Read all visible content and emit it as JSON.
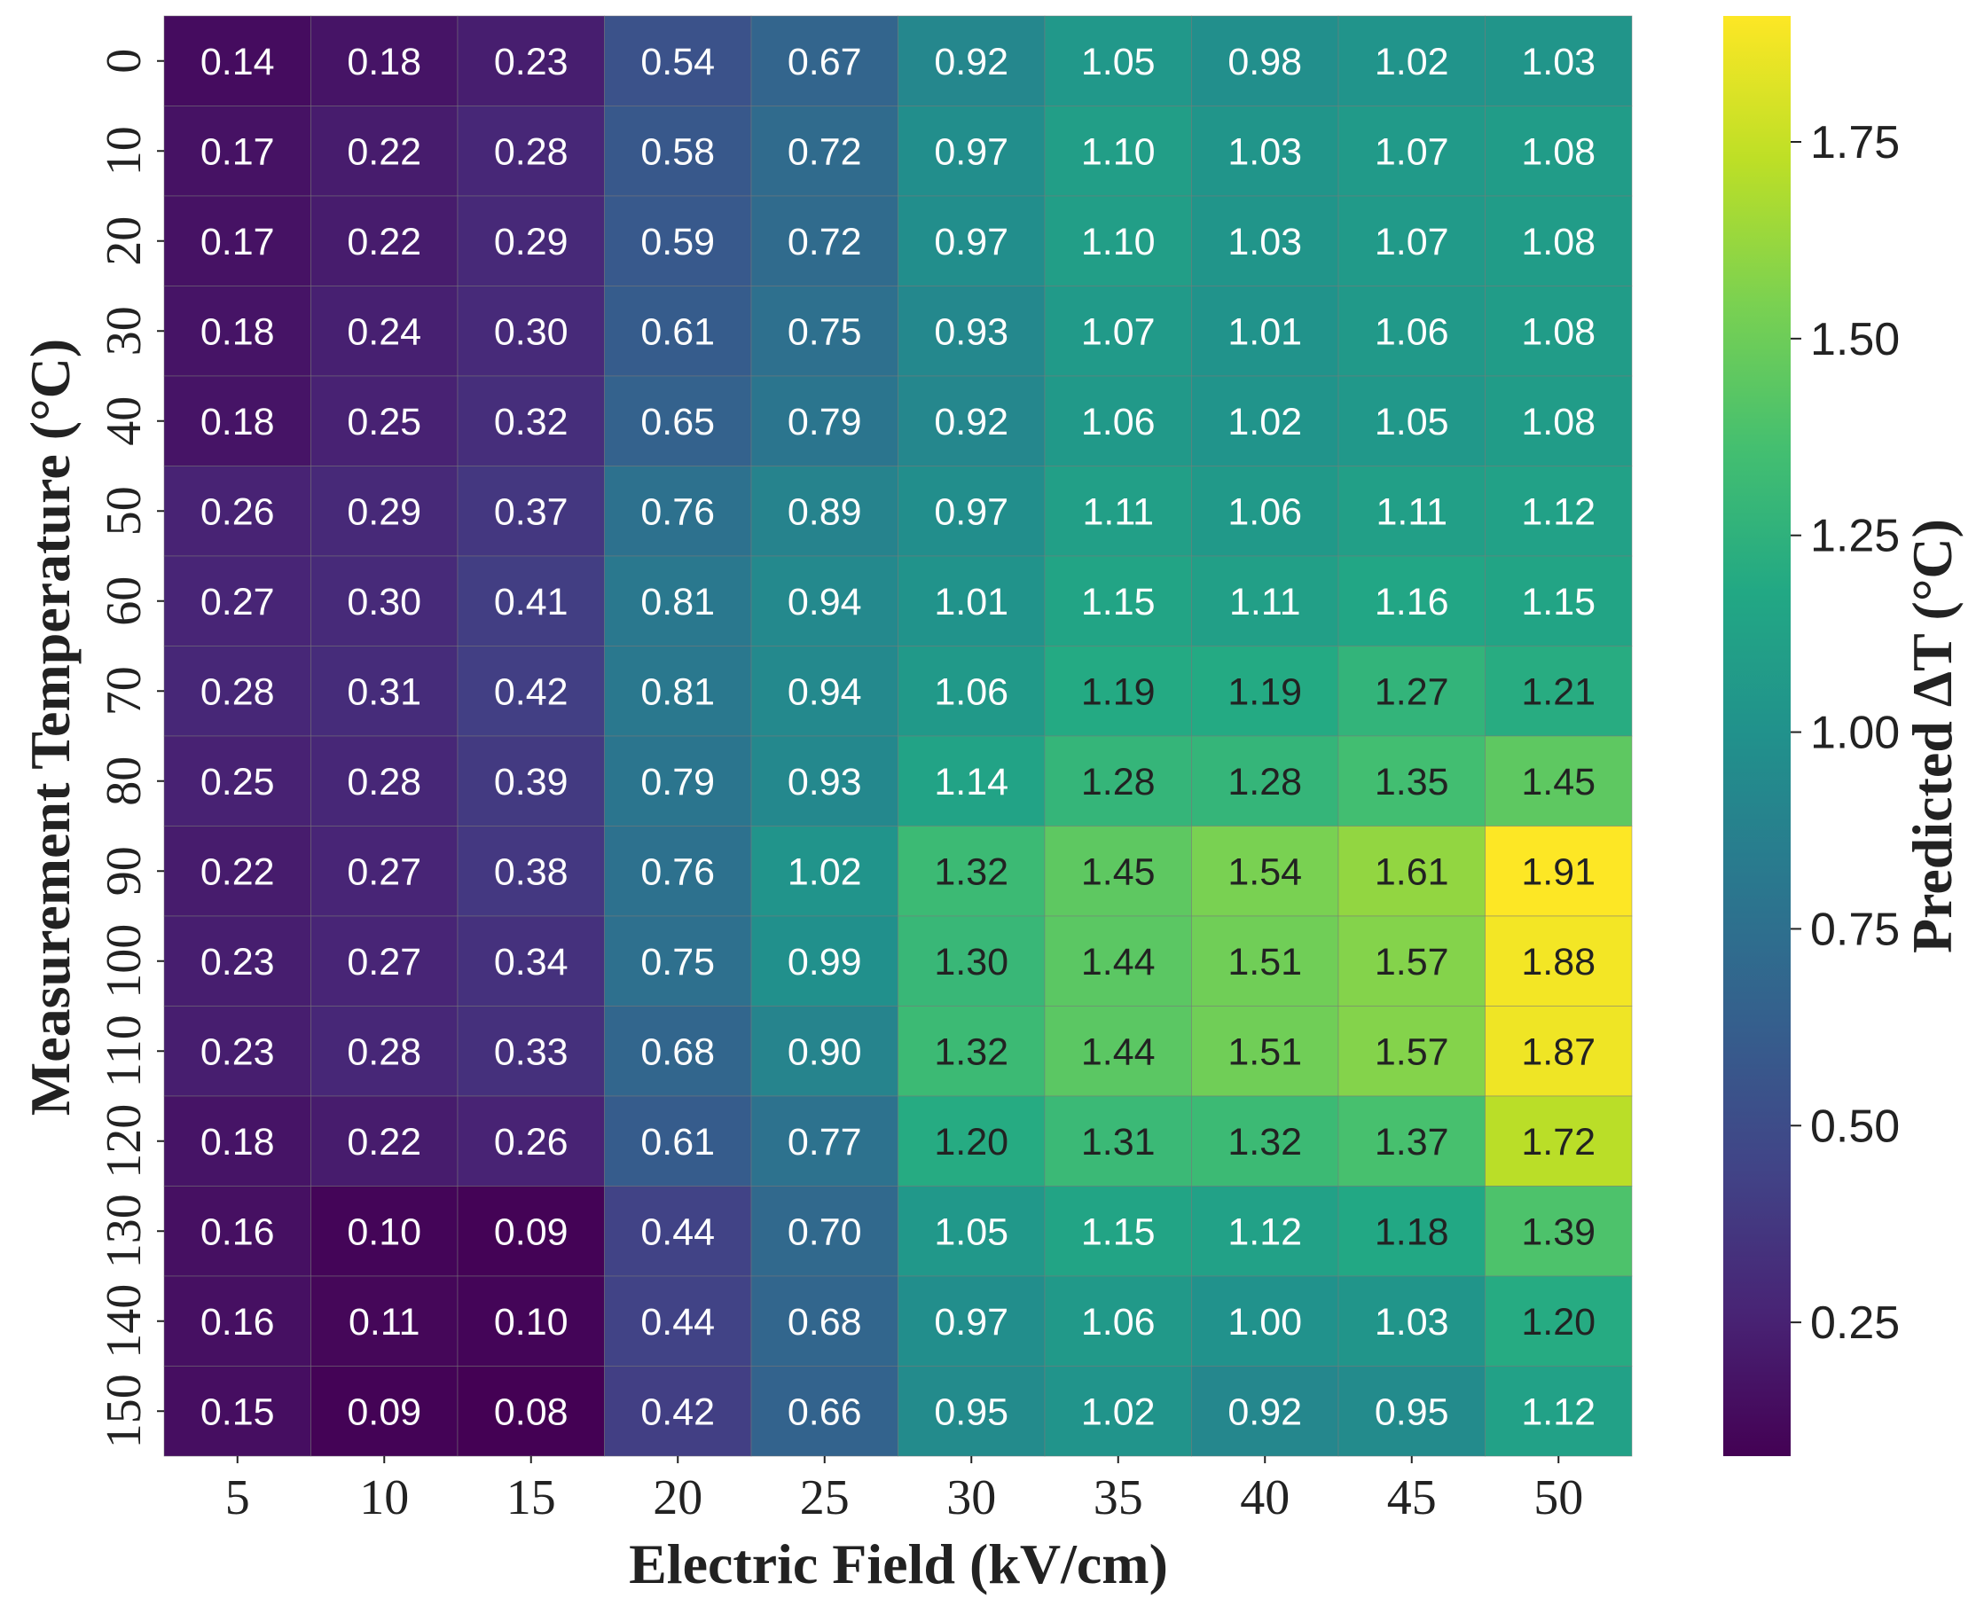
{
  "chart_data": {
    "type": "heatmap",
    "title": "",
    "xlabel": "Electric Field (kV/cm)",
    "ylabel": "Measurement Temperature (°C)",
    "colorbar_label": "Predicted ΔT (°C)",
    "x_categories": [
      "5",
      "10",
      "15",
      "20",
      "25",
      "30",
      "35",
      "40",
      "45",
      "50"
    ],
    "y_categories": [
      "0",
      "10",
      "20",
      "30",
      "40",
      "50",
      "60",
      "70",
      "80",
      "90",
      "100",
      "110",
      "120",
      "130",
      "140",
      "150"
    ],
    "values": [
      [
        0.14,
        0.18,
        0.23,
        0.54,
        0.67,
        0.92,
        1.05,
        0.98,
        1.02,
        1.03
      ],
      [
        0.17,
        0.22,
        0.28,
        0.58,
        0.72,
        0.97,
        1.1,
        1.03,
        1.07,
        1.08
      ],
      [
        0.17,
        0.22,
        0.29,
        0.59,
        0.72,
        0.97,
        1.1,
        1.03,
        1.07,
        1.08
      ],
      [
        0.18,
        0.24,
        0.3,
        0.61,
        0.75,
        0.93,
        1.07,
        1.01,
        1.06,
        1.08
      ],
      [
        0.18,
        0.25,
        0.32,
        0.65,
        0.79,
        0.92,
        1.06,
        1.02,
        1.05,
        1.08
      ],
      [
        0.26,
        0.29,
        0.37,
        0.76,
        0.89,
        0.97,
        1.11,
        1.06,
        1.11,
        1.12
      ],
      [
        0.27,
        0.3,
        0.41,
        0.81,
        0.94,
        1.01,
        1.15,
        1.11,
        1.16,
        1.15
      ],
      [
        0.28,
        0.31,
        0.42,
        0.81,
        0.94,
        1.06,
        1.19,
        1.19,
        1.27,
        1.21
      ],
      [
        0.25,
        0.28,
        0.39,
        0.79,
        0.93,
        1.14,
        1.28,
        1.28,
        1.35,
        1.45
      ],
      [
        0.22,
        0.27,
        0.38,
        0.76,
        1.02,
        1.32,
        1.45,
        1.54,
        1.61,
        1.91
      ],
      [
        0.23,
        0.27,
        0.34,
        0.75,
        0.99,
        1.3,
        1.44,
        1.51,
        1.57,
        1.88
      ],
      [
        0.23,
        0.28,
        0.33,
        0.68,
        0.9,
        1.32,
        1.44,
        1.51,
        1.57,
        1.87
      ],
      [
        0.18,
        0.22,
        0.26,
        0.61,
        0.77,
        1.2,
        1.31,
        1.32,
        1.37,
        1.72
      ],
      [
        0.16,
        0.1,
        0.09,
        0.44,
        0.7,
        1.05,
        1.15,
        1.12,
        1.18,
        1.39
      ],
      [
        0.16,
        0.11,
        0.1,
        0.44,
        0.68,
        0.97,
        1.06,
        1.0,
        1.03,
        1.2
      ],
      [
        0.15,
        0.09,
        0.08,
        0.42,
        0.66,
        0.95,
        1.02,
        0.92,
        0.95,
        1.12
      ]
    ],
    "value_format": "2 decimals",
    "color_range": [
      0.08,
      1.91
    ],
    "colormap": "viridis",
    "colorbar_ticks": [
      0.25,
      0.5,
      0.75,
      1.0,
      1.25,
      1.5,
      1.75
    ],
    "colorbar_tick_labels": [
      "0.25",
      "0.50",
      "0.75",
      "1.00",
      "1.25",
      "1.50",
      "1.75"
    ],
    "text_color_dark": "#222222",
    "text_color_light": "#ffffff",
    "grid_line_color": "#7a7a7a"
  }
}
